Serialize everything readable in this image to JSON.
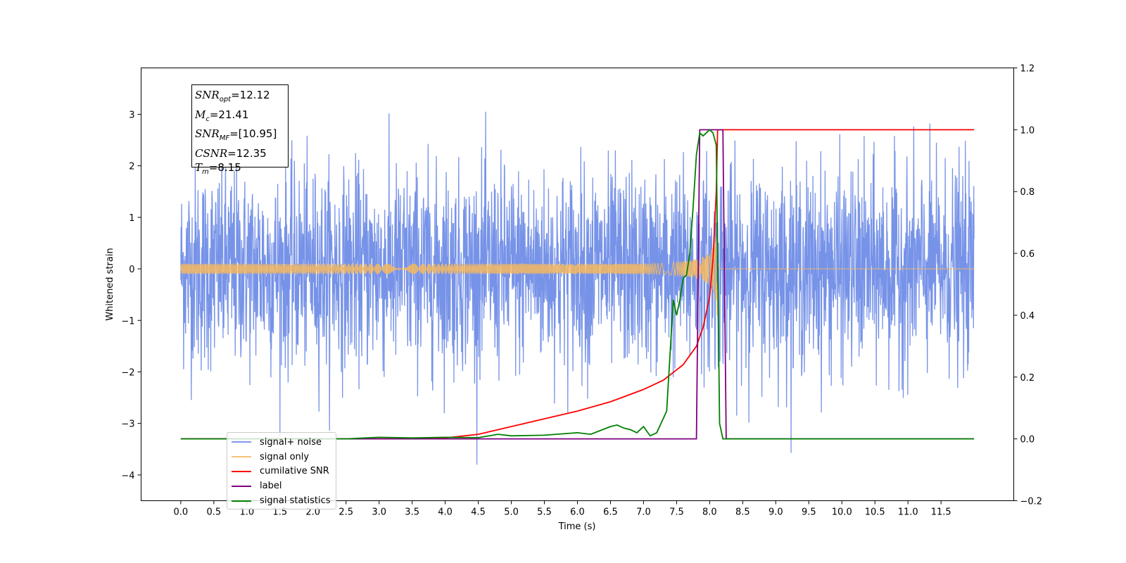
{
  "chart_data": {
    "type": "line",
    "xlabel": "Time (s)",
    "ylabel": "Whitened strain",
    "xlim": [
      -0.6,
      12.6
    ],
    "ylim": [
      -4.5,
      3.9
    ],
    "ylim_right": [
      -0.2,
      1.2
    ],
    "x_ticks": [
      "0.0",
      "0.5",
      "1.0",
      "1.5",
      "2.0",
      "2.5",
      "3.0",
      "3.5",
      "4.0",
      "4.5",
      "5.0",
      "5.5",
      "6.0",
      "6.5",
      "7.0",
      "7.5",
      "8.0",
      "8.5",
      "9.0",
      "9.5",
      "10.0",
      "10.5",
      "11.0",
      "11.5"
    ],
    "y_ticks_left": [
      "3",
      "2",
      "1",
      "0",
      "−1",
      "−2",
      "−3",
      "−4"
    ],
    "y_ticks_right": [
      "1.2",
      "1.0",
      "0.8",
      "0.6",
      "0.4",
      "0.2",
      "0.0",
      "−0.2"
    ],
    "legend_position": "lower-left",
    "stats_box": [
      {
        "sym": "SNR",
        "sub": "opt",
        "val": "=12.12"
      },
      {
        "sym": "M",
        "sub": "c",
        "val": "=21.41"
      },
      {
        "sym": "SNR",
        "sub": "MF",
        "val": "=[10.95]"
      },
      {
        "sym": "CSNR",
        "sub": "",
        "val": "=12.35"
      },
      {
        "sym": "T",
        "sub": "m",
        "val": "=8.15"
      }
    ],
    "series": [
      {
        "name": "signal+ noise",
        "color": "#6b8ae6",
        "axis": "left",
        "description_range": [
          -3.8,
          3.6
        ],
        "x_range": [
          0.0,
          12.0
        ]
      },
      {
        "name": "signal only",
        "color": "#f5b860",
        "axis": "left",
        "peak_time": 8.12,
        "peak_amplitude": 1.05
      },
      {
        "name": "cumilative SNR",
        "color": "#ff0000",
        "axis": "right",
        "x": [
          0.0,
          3.5,
          4.0,
          4.5,
          5.0,
          5.5,
          6.0,
          6.5,
          7.0,
          7.3,
          7.6,
          7.8,
          7.9,
          8.0,
          8.05,
          8.1,
          8.12,
          12.0
        ],
        "y": [
          0.0,
          0.0,
          0.003,
          0.015,
          0.04,
          0.065,
          0.09,
          0.12,
          0.16,
          0.19,
          0.24,
          0.3,
          0.36,
          0.46,
          0.58,
          0.8,
          1.0,
          1.0
        ]
      },
      {
        "name": "label",
        "color": "#800080",
        "axis": "right",
        "x": [
          0.0,
          7.8,
          7.85,
          8.2,
          8.25,
          12.0
        ],
        "y": [
          0.0,
          0.0,
          1.0,
          1.0,
          0.0,
          0.0
        ]
      },
      {
        "name": "signal statistics",
        "color": "#008000",
        "axis": "right",
        "x": [
          0.0,
          2.5,
          3.0,
          3.5,
          4.0,
          4.5,
          4.8,
          5.0,
          5.5,
          6.0,
          6.2,
          6.5,
          6.6,
          6.7,
          6.8,
          6.9,
          7.0,
          7.1,
          7.2,
          7.35,
          7.45,
          7.5,
          7.55,
          7.6,
          7.65,
          7.7,
          7.75,
          7.8,
          7.85,
          7.9,
          7.95,
          8.0,
          8.05,
          8.1,
          8.15,
          8.2,
          8.25,
          12.0
        ],
        "y": [
          0.0,
          0.0,
          0.005,
          0.003,
          0.005,
          0.004,
          0.015,
          0.01,
          0.012,
          0.02,
          0.015,
          0.04,
          0.045,
          0.035,
          0.03,
          0.02,
          0.04,
          0.01,
          0.02,
          0.09,
          0.45,
          0.4,
          0.45,
          0.52,
          0.53,
          0.6,
          0.75,
          0.92,
          0.99,
          0.98,
          0.99,
          1.0,
          0.99,
          0.95,
          0.05,
          0.0,
          0.0,
          0.0
        ]
      }
    ]
  }
}
